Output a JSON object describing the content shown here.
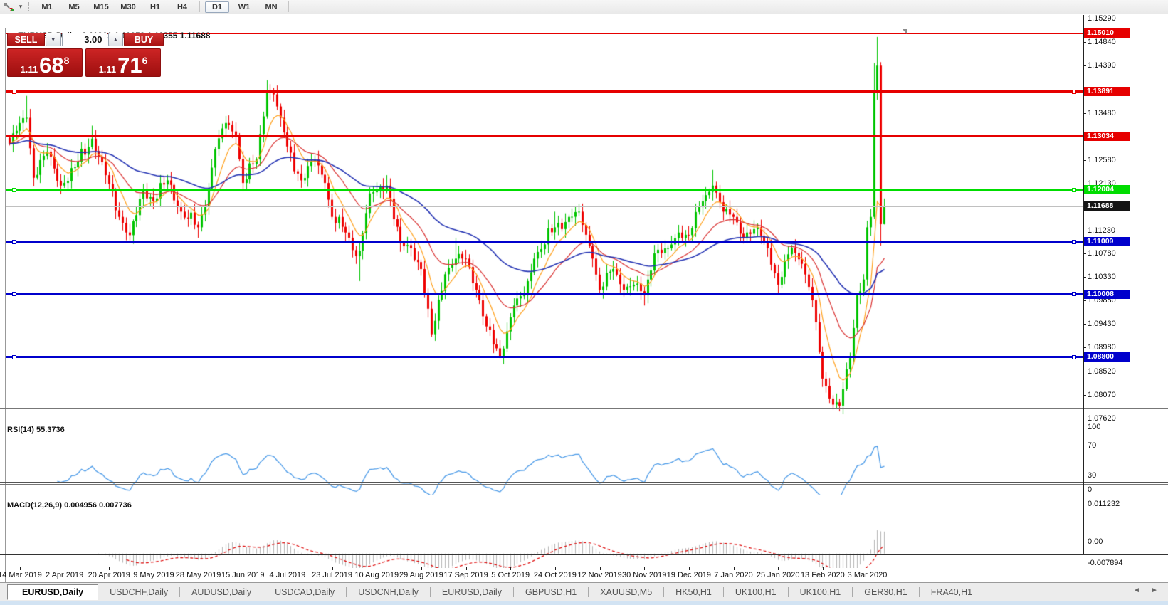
{
  "toolbar": {
    "chart_type_icon": "trade-arrows-icon",
    "dropdown_caret": "▾",
    "timeframes": [
      "M1",
      "M5",
      "M15",
      "M30",
      "H1",
      "H4",
      "D1",
      "W1",
      "MN"
    ],
    "active_timeframe": "D1"
  },
  "window": {
    "collapse_icon": "▲",
    "symbol": "EURUSD,Daily",
    "ohlc": "1.11361 1.11853 1.11355 1.11688"
  },
  "trade_panel": {
    "sell_label": "SELL",
    "buy_label": "BUY",
    "volume": "3.00",
    "caret_down": "▼",
    "caret_up": "▲",
    "sell_price_small": "1.11",
    "sell_price_big": "68",
    "sell_price_sup": "8",
    "buy_price_small": "1.11",
    "buy_price_big": "71",
    "buy_price_sup": "6"
  },
  "price_axis": {
    "ticks": [
      "1.15290",
      "1.14840",
      "1.14390",
      "1.13480",
      "1.12580",
      "1.12130",
      "1.11230",
      "1.10780",
      "1.10330",
      "1.09880",
      "1.09430",
      "1.08980",
      "1.08520",
      "1.08070",
      "1.07620"
    ]
  },
  "horizontal_lines": [
    {
      "label": "1.15010",
      "value": 1.1501,
      "color": "#e60000",
      "thickness": 2,
      "handles": false
    },
    {
      "label": "1.13891",
      "value": 1.13891,
      "color": "#e60000",
      "thickness": 4,
      "handles": true
    },
    {
      "label": "1.13034",
      "value": 1.13034,
      "color": "#e60000",
      "thickness": 2,
      "handles": false
    },
    {
      "label": "1.12004",
      "value": 1.12004,
      "color": "#00dd00",
      "thickness": 3,
      "handles": true
    },
    {
      "label": "1.11009",
      "value": 1.11009,
      "color": "#0000cc",
      "thickness": 3,
      "handles": true
    },
    {
      "label": "1.10008",
      "value": 1.10008,
      "color": "#0000cc",
      "thickness": 3,
      "handles": true
    },
    {
      "label": "1.08800",
      "value": 1.088,
      "color": "#0000cc",
      "thickness": 3,
      "handles": true
    }
  ],
  "current_price": {
    "label": "1.11688",
    "value": 1.11688,
    "line_color": "#c0c0c0",
    "tag_color": "#141414"
  },
  "date_axis": [
    "14 Mar 2019",
    "2 Apr 2019",
    "20 Apr 2019",
    "9 May 2019",
    "28 May 2019",
    "15 Jun 2019",
    "4 Jul 2019",
    "23 Jul 2019",
    "10 Aug 2019",
    "29 Aug 2019",
    "17 Sep 2019",
    "5 Oct 2019",
    "24 Oct 2019",
    "12 Nov 2019",
    "30 Nov 2019",
    "19 Dec 2019",
    "7 Jan 2020",
    "25 Jan 2020",
    "13 Feb 2020",
    "3 Mar 2020"
  ],
  "rsi_pane": {
    "label": "RSI(14) 55.3736",
    "period": 14,
    "value": 55.3736,
    "axis_labels": [
      "100",
      "70",
      "30",
      "0"
    ],
    "dashed_levels": [
      70,
      30
    ]
  },
  "macd_pane": {
    "label": "MACD(12,26,9) 0.004956 0.007736",
    "params": [
      12,
      26,
      9
    ],
    "main_value": 0.004956,
    "signal_value": 0.007736,
    "axis_labels": [
      "0.011232",
      "0.00",
      "-0.007894"
    ],
    "axis_max": 0.011232,
    "axis_min": -0.007894
  },
  "tabs": {
    "items": [
      "EURUSD,Daily",
      "USDCHF,Daily",
      "AUDUSD,Daily",
      "USDCAD,Daily",
      "USDCNH,Daily",
      "EURUSD,Daily",
      "GBPUSD,H1",
      "XAUUSD,M5",
      "HK50,H1",
      "UK100,H1",
      "UK100,H1",
      "GER30,H1",
      "FRA40,H1"
    ],
    "active_index": 0,
    "scroll_left_icon": "◄",
    "scroll_right_icon": "►"
  },
  "colors": {
    "candle_up": "#00c400",
    "candle_down": "#ee0000",
    "ma_fast_orange": "#ff9f1a",
    "ma_mid_red": "#d93030",
    "ma_slow_blue": "#2433b3",
    "rsi_line": "#4c9be8",
    "macd_histogram": "#b4b4b4",
    "macd_signal": "#dd0000"
  },
  "chart_data": {
    "type": "candlestick",
    "symbol": "EURUSD",
    "timeframe": "Daily",
    "visible_range": {
      "first_date": "14 Mar 2019",
      "last_date": "3 Mar 2020",
      "price_min": 1.0762,
      "price_max": 1.1529
    },
    "n_candles": 256,
    "waypoints_close_path": [
      [
        0,
        1.129
      ],
      [
        3,
        1.133
      ],
      [
        5,
        1.134,
        1.1382,
        null
      ],
      [
        7,
        1.1225
      ],
      [
        11,
        1.1275
      ],
      [
        15,
        1.121
      ],
      [
        19,
        1.1245
      ],
      [
        24,
        1.13,
        1.1325,
        null
      ],
      [
        28,
        1.123
      ],
      [
        32,
        1.115
      ],
      [
        35,
        1.1115,
        null,
        1.1105
      ],
      [
        39,
        1.12
      ],
      [
        42,
        1.118
      ],
      [
        46,
        1.122
      ],
      [
        50,
        1.116
      ],
      [
        55,
        1.113,
        null,
        1.111
      ],
      [
        57,
        1.117
      ],
      [
        60,
        1.128
      ],
      [
        63,
        1.133
      ],
      [
        66,
        1.1305
      ],
      [
        68,
        1.1215
      ],
      [
        72,
        1.126
      ],
      [
        75,
        1.139,
        1.1412,
        null
      ],
      [
        77,
        1.1385
      ],
      [
        79,
        1.134
      ],
      [
        81,
        1.1285
      ],
      [
        85,
        1.122
      ],
      [
        89,
        1.126
      ],
      [
        92,
        1.1215
      ],
      [
        94,
        1.115
      ],
      [
        98,
        1.112
      ],
      [
        101,
        1.1075
      ],
      [
        102,
        1.1085,
        null,
        1.1027
      ],
      [
        105,
        1.1195
      ],
      [
        107,
        1.12
      ],
      [
        110,
        1.121,
        1.123,
        null
      ],
      [
        114,
        1.11
      ],
      [
        117,
        1.109
      ],
      [
        120,
        1.105
      ],
      [
        123,
        1.0925,
        null,
        1.092
      ],
      [
        127,
        1.104
      ],
      [
        130,
        1.107,
        1.111,
        null
      ],
      [
        133,
        1.107
      ],
      [
        136,
        1.101
      ],
      [
        139,
        1.094
      ],
      [
        143,
        1.0882,
        null,
        1.0879
      ],
      [
        147,
        1.098
      ],
      [
        150,
        1.1
      ],
      [
        153,
        1.107
      ],
      [
        159,
        1.113,
        1.116,
        null
      ],
      [
        163,
        1.115
      ],
      [
        166,
        1.116,
        1.1175,
        null
      ],
      [
        170,
        1.107
      ],
      [
        172,
        1.101
      ],
      [
        176,
        1.105
      ],
      [
        179,
        1.101
      ],
      [
        182,
        1.102
      ],
      [
        185,
        1.1,
        null,
        1.098
      ],
      [
        188,
        1.108
      ],
      [
        192,
        1.109
      ],
      [
        195,
        1.112
      ],
      [
        198,
        1.1115
      ],
      [
        202,
        1.118
      ],
      [
        205,
        1.121,
        1.124,
        null
      ],
      [
        208,
        1.116
      ],
      [
        211,
        1.115
      ],
      [
        214,
        1.111
      ],
      [
        218,
        1.113
      ],
      [
        221,
        1.109
      ],
      [
        224,
        1.102
      ],
      [
        228,
        1.109
      ],
      [
        231,
        1.106
      ],
      [
        234,
        1.099
      ],
      [
        237,
        1.084
      ],
      [
        240,
        1.079,
        null,
        1.0781
      ],
      [
        242,
        1.0788,
        null,
        1.0777
      ],
      [
        245,
        1.088
      ],
      [
        247,
        1.1
      ],
      [
        249,
        1.103
      ],
      [
        250,
        1.113
      ],
      [
        251,
        1.115
      ],
      [
        252,
        1.139,
        1.1445,
        null
      ],
      [
        253,
        1.144,
        1.1495,
        null
      ],
      [
        254,
        1.1136,
        null,
        1.1095
      ],
      [
        255,
        1.11688,
        1.11853,
        1.11355
      ]
    ],
    "moving_averages": [
      {
        "period": 8,
        "type": "EMA",
        "color": "#ff9f1a"
      },
      {
        "period": 21,
        "type": "EMA",
        "color": "#d93030"
      },
      {
        "period": 55,
        "type": "EMA",
        "color": "#2433b3"
      }
    ],
    "indicators": [
      {
        "name": "RSI",
        "period": 14,
        "current": 55.3736,
        "levels": [
          70,
          30
        ]
      },
      {
        "name": "MACD",
        "fast": 12,
        "slow": 26,
        "signal": 9,
        "current_main": 0.004956,
        "current_signal": 0.007736
      }
    ],
    "bid": 1.11688,
    "ask": 1.11716
  }
}
